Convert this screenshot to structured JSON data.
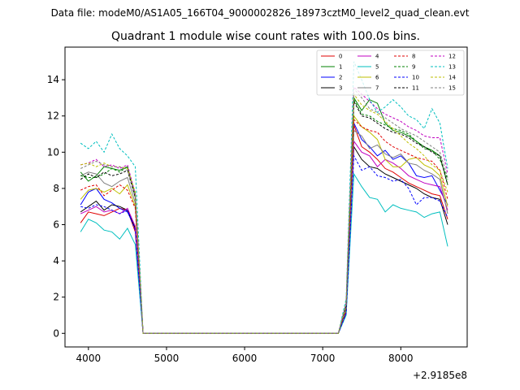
{
  "suptitle": "Data file: modeM0/AS1A05_166T04_9000002826_18973cztM0_level2_quad_clean.evt",
  "chart_data": {
    "type": "line",
    "title": "Quadrant 1 module wise count rates with 100.0s bins.",
    "xlabel": "",
    "ylabel": "",
    "x_offset_label": "+2.9185e8",
    "xlim": [
      3700,
      8850
    ],
    "ylim": [
      -0.75,
      15.8
    ],
    "xticks": [
      4000,
      5000,
      6000,
      7000,
      8000
    ],
    "xtick_labels": [
      "4000",
      "5000",
      "6000",
      "7000",
      "8000"
    ],
    "yticks": [
      0,
      2,
      4,
      6,
      8,
      10,
      12,
      14
    ],
    "ytick_labels": [
      "0",
      "2",
      "4",
      "6",
      "8",
      "10",
      "12",
      "14"
    ],
    "legend_position": "top-right",
    "x": [
      3900,
      4000,
      4100,
      4200,
      4300,
      4400,
      4500,
      4600,
      4700,
      7200,
      7300,
      7400,
      7500,
      7600,
      7700,
      7800,
      7900,
      8000,
      8100,
      8200,
      8300,
      8400,
      8500,
      8600
    ],
    "zero_range": [
      4700,
      7200
    ],
    "series": [
      {
        "name": "0",
        "color": "#e00000",
        "dash": false,
        "values": [
          6.1,
          6.7,
          6.6,
          6.5,
          6.7,
          6.9,
          6.8,
          5.6,
          0.0,
          0.0,
          1.2,
          11.5,
          10.3,
          10.0,
          9.6,
          9.1,
          8.9,
          8.6,
          8.3,
          8.1,
          7.9,
          7.7,
          7.6,
          6.3
        ]
      },
      {
        "name": "1",
        "color": "#008000",
        "dash": false,
        "values": [
          8.9,
          8.4,
          8.7,
          9.2,
          9.1,
          9.0,
          9.2,
          7.5,
          0.0,
          0.0,
          1.5,
          13.0,
          12.3,
          12.9,
          12.7,
          11.6,
          11.2,
          11.1,
          10.9,
          10.6,
          10.3,
          10.1,
          9.8,
          8.2
        ]
      },
      {
        "name": "2",
        "color": "#0000ff",
        "dash": false,
        "values": [
          7.1,
          7.8,
          8.0,
          7.4,
          7.2,
          6.9,
          6.7,
          5.8,
          0.0,
          0.0,
          1.3,
          11.6,
          10.7,
          10.3,
          9.8,
          10.1,
          9.6,
          9.8,
          9.4,
          8.7,
          8.6,
          8.7,
          7.9,
          7.1
        ]
      },
      {
        "name": "3",
        "color": "#000000",
        "dash": false,
        "values": [
          6.7,
          7.0,
          7.3,
          6.8,
          7.1,
          7.0,
          6.8,
          5.8,
          0.0,
          0.0,
          1.1,
          10.3,
          9.6,
          9.2,
          9.1,
          8.8,
          8.6,
          8.4,
          8.2,
          8.0,
          7.7,
          7.5,
          7.4,
          6.0
        ]
      },
      {
        "name": "4",
        "color": "#c000c0",
        "dash": false,
        "values": [
          6.6,
          6.8,
          7.0,
          6.7,
          6.8,
          6.6,
          6.9,
          5.9,
          0.0,
          0.0,
          1.2,
          10.6,
          10.0,
          9.8,
          9.2,
          9.6,
          9.4,
          9.1,
          8.7,
          8.5,
          8.3,
          8.2,
          8.1,
          6.8
        ]
      },
      {
        "name": "5",
        "color": "#00bfbf",
        "dash": false,
        "values": [
          5.6,
          6.3,
          6.1,
          5.7,
          5.6,
          5.2,
          5.8,
          4.9,
          0.0,
          0.0,
          1.0,
          8.8,
          8.1,
          7.5,
          7.4,
          6.7,
          7.1,
          6.9,
          6.8,
          6.7,
          6.4,
          6.6,
          6.7,
          4.8
        ]
      },
      {
        "name": "6",
        "color": "#bfbf00",
        "dash": false,
        "values": [
          7.4,
          7.9,
          8.0,
          7.8,
          8.0,
          7.7,
          8.2,
          7.0,
          0.0,
          0.0,
          1.4,
          12.0,
          11.4,
          11.1,
          10.7,
          9.6,
          9.2,
          9.2,
          9.6,
          9.7,
          9.3,
          9.1,
          8.7,
          7.0
        ]
      },
      {
        "name": "7",
        "color": "#808080",
        "dash": false,
        "values": [
          8.7,
          8.9,
          8.8,
          8.3,
          8.1,
          8.4,
          8.6,
          7.2,
          0.0,
          0.0,
          1.3,
          11.2,
          10.9,
          10.2,
          10.4,
          9.9,
          9.7,
          9.9,
          9.4,
          9.3,
          9.0,
          8.8,
          8.5,
          6.6
        ]
      },
      {
        "name": "8",
        "color": "#e00000",
        "dash": true,
        "values": [
          7.9,
          8.1,
          8.2,
          7.6,
          7.9,
          8.2,
          7.9,
          6.9,
          0.0,
          0.0,
          1.2,
          11.8,
          11.4,
          11.2,
          11.1,
          10.6,
          10.3,
          10.1,
          9.9,
          9.7,
          9.6,
          9.5,
          9.0,
          7.4
        ]
      },
      {
        "name": "9",
        "color": "#008000",
        "dash": true,
        "values": [
          8.7,
          8.6,
          8.6,
          8.8,
          9.1,
          8.9,
          9.2,
          7.6,
          0.0,
          0.0,
          1.6,
          12.9,
          12.1,
          12.0,
          11.7,
          11.5,
          11.3,
          11.2,
          11.0,
          10.6,
          10.2,
          10.1,
          9.6,
          8.5
        ]
      },
      {
        "name": "10",
        "color": "#0000ff",
        "dash": true,
        "values": [
          7.0,
          6.9,
          7.1,
          7.0,
          6.8,
          6.6,
          6.8,
          5.7,
          0.0,
          0.0,
          1.1,
          9.8,
          9.0,
          9.2,
          8.7,
          8.6,
          8.4,
          8.5,
          8.0,
          7.1,
          7.5,
          7.5,
          7.3,
          6.4
        ]
      },
      {
        "name": "11",
        "color": "#000000",
        "dash": true,
        "values": [
          8.5,
          8.8,
          8.6,
          8.9,
          8.7,
          8.8,
          9.0,
          7.5,
          0.0,
          0.0,
          1.5,
          12.8,
          12.0,
          11.9,
          11.6,
          11.3,
          11.1,
          11.0,
          10.8,
          10.5,
          10.3,
          10.0,
          9.8,
          8.2
        ]
      },
      {
        "name": "12",
        "color": "#c000c0",
        "dash": true,
        "values": [
          9.3,
          9.4,
          9.6,
          9.2,
          9.3,
          9.1,
          9.3,
          7.7,
          0.0,
          0.0,
          1.7,
          13.6,
          13.2,
          12.8,
          12.4,
          12.1,
          11.9,
          11.7,
          11.4,
          11.2,
          10.9,
          10.8,
          10.8,
          8.8
        ]
      },
      {
        "name": "13",
        "color": "#00bfbf",
        "dash": true,
        "values": [
          10.5,
          10.2,
          10.6,
          10.0,
          11.0,
          10.2,
          9.8,
          9.2,
          0.0,
          0.0,
          1.9,
          15.0,
          14.0,
          12.9,
          12.2,
          12.5,
          12.9,
          12.5,
          12.0,
          11.8,
          11.3,
          12.4,
          11.6,
          9.1
        ]
      },
      {
        "name": "14",
        "color": "#bfbf00",
        "dash": true,
        "values": [
          9.3,
          9.4,
          9.2,
          9.4,
          9.2,
          9.2,
          9.1,
          7.8,
          0.0,
          0.0,
          1.6,
          13.2,
          12.6,
          12.3,
          12.1,
          11.7,
          11.3,
          10.9,
          10.5,
          10.2,
          9.8,
          9.3,
          9.0,
          7.8
        ]
      },
      {
        "name": "15",
        "color": "#808080",
        "dash": true,
        "values": [
          9.1,
          9.3,
          9.5,
          9.3,
          9.2,
          9.2,
          9.0,
          7.6,
          0.0,
          0.0,
          1.6,
          13.5,
          13.0,
          12.4,
          12.2,
          11.9,
          11.6,
          11.3,
          11.1,
          10.9,
          10.6,
          10.3,
          10.0,
          8.6
        ]
      }
    ]
  }
}
